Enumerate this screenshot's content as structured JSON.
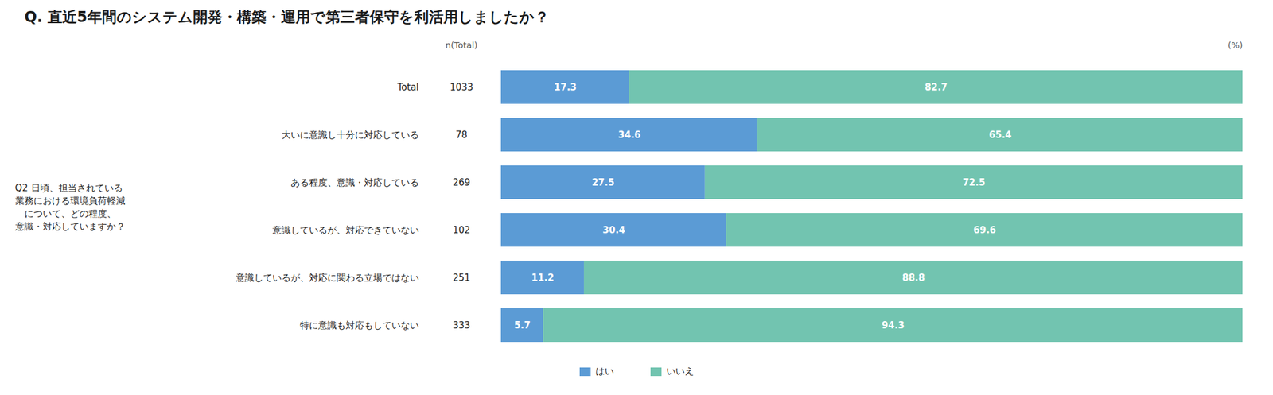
{
  "chart_data": {
    "type": "bar",
    "orientation": "horizontal",
    "stacked": true,
    "data_labels": true,
    "tick_labels": "y",
    "grid": false,
    "legend": "bottom",
    "title": "Q.  直近5年間のシステム開発・構築・運用で第三者保守を利活用しましたか？",
    "xlabel": "(%)",
    "ylabel": [
      "Q2 日頃、担当されている",
      "業務における環境負荷軽減",
      "　について、どの程度、",
      "意識・対応していますか？"
    ],
    "n_header": "n(Total)",
    "categories": [
      "Total",
      "大いに意識し十分に対応している",
      "ある程度、意識・対応している",
      "意識しているが、対応できていない",
      "意識しているが、対応に関わる立場ではない",
      "特に意識も対応もしていない"
    ],
    "n": [
      1033,
      78,
      269,
      102,
      251,
      333
    ],
    "xlim": [
      0,
      100
    ],
    "series": [
      {
        "name": "はい",
        "color": "#5b9bd5",
        "values": [
          17.3,
          34.6,
          27.5,
          30.4,
          11.2,
          5.7
        ]
      },
      {
        "name": "いいえ",
        "color": "#72c4b0",
        "values": [
          82.7,
          65.4,
          72.5,
          69.6,
          88.8,
          94.3
        ]
      }
    ]
  }
}
